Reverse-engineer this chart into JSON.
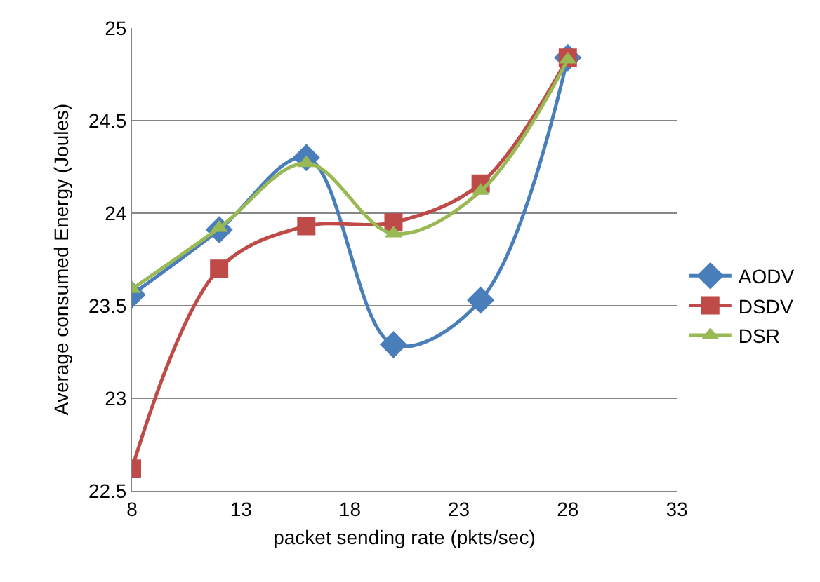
{
  "chart_data": {
    "type": "line",
    "xlabel": "packet sending rate (pkts/sec)",
    "ylabel": "Average consumed Energy (Joules)",
    "x": [
      8,
      12,
      16,
      20,
      24,
      28
    ],
    "series": [
      {
        "name": "AODV",
        "color": "#4a7ebb",
        "marker": "diamond",
        "values": [
          23.56,
          23.91,
          24.3,
          23.29,
          23.53,
          24.84
        ]
      },
      {
        "name": "DSDV",
        "color": "#be4b48",
        "marker": "square",
        "values": [
          22.62,
          23.7,
          23.93,
          23.95,
          24.16,
          24.84
        ]
      },
      {
        "name": "DSR",
        "color": "#98b954",
        "marker": "triangle",
        "values": [
          23.59,
          23.92,
          24.27,
          23.89,
          24.12,
          24.83
        ]
      }
    ],
    "xlim": [
      8,
      33
    ],
    "xticks": [
      8,
      13,
      18,
      23,
      28,
      33
    ],
    "ylim": [
      22.5,
      25
    ],
    "yticks": [
      22.5,
      23,
      23.5,
      24,
      24.5,
      25
    ],
    "grid": "y",
    "legend": "right",
    "line_style": "solid"
  }
}
